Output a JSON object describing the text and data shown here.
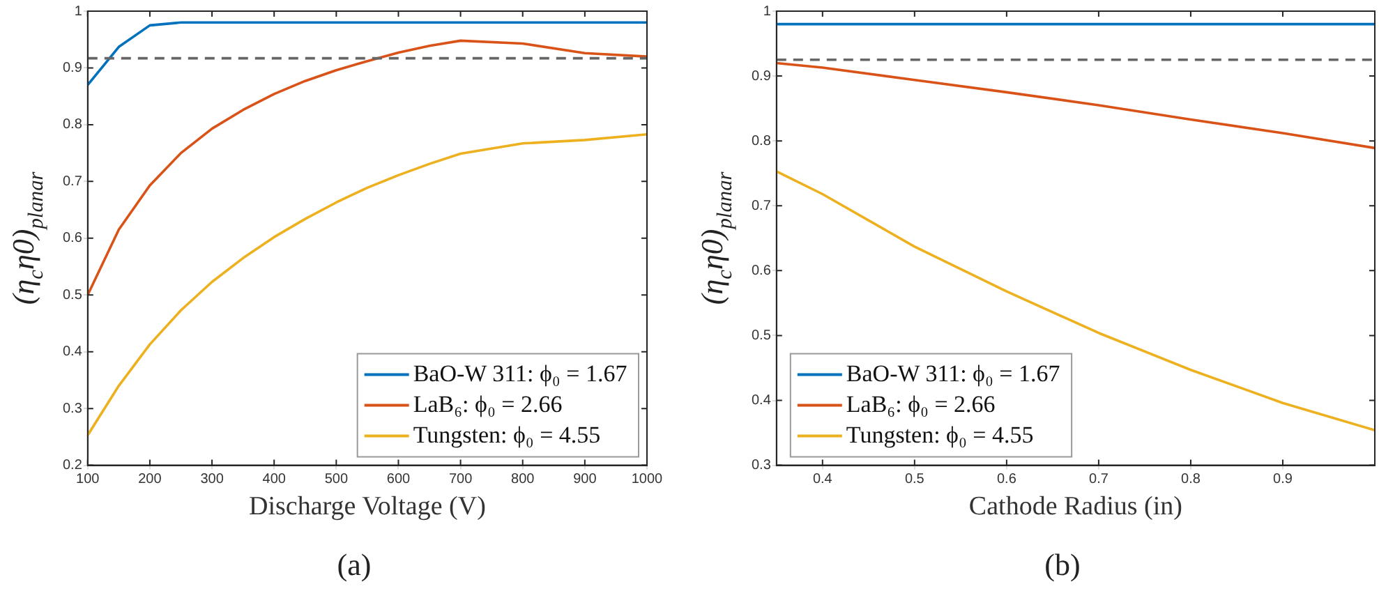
{
  "chart_data": [
    {
      "type": "line",
      "title": "(a)",
      "xlabel": "Discharge Voltage (V)",
      "ylabel": "(η$_{c}$η0)$_{planar}$",
      "xlim": [
        100,
        1000
      ],
      "xticks": [
        100,
        200,
        300,
        400,
        500,
        600,
        700,
        800,
        900,
        1000
      ],
      "ylim": [
        0.2,
        1
      ],
      "yticks": [
        0.2,
        0.3,
        0.4,
        0.5,
        0.6,
        0.7,
        0.8,
        0.9,
        1
      ],
      "grid": false,
      "legend": "bottom right",
      "marker": "none",
      "line_style": "solid",
      "x": [
        100,
        150,
        200,
        250,
        300,
        350,
        400,
        450,
        500,
        550,
        600,
        650,
        700,
        800,
        900,
        1000
      ],
      "series": [
        {
          "name": "BaO-W 311: ϕ₀ = 1.67",
          "color": "#0072bd",
          "values": [
            0.87,
            0.937,
            0.975,
            0.98,
            0.98,
            0.98,
            0.98,
            0.98,
            0.98,
            0.98,
            0.98,
            0.98,
            0.98,
            0.98,
            0.98,
            0.98
          ]
        },
        {
          "name": "LaB₆: ϕ₀ = 2.66",
          "color": "#d95319",
          "values": [
            0.5,
            0.615,
            0.693,
            0.75,
            0.793,
            0.826,
            0.854,
            0.877,
            0.896,
            0.912,
            0.927,
            0.939,
            0.948,
            0.943,
            0.926,
            0.92
          ]
        },
        {
          "name": "Tungsten: ϕ₀ = 4.55",
          "color": "#edb120",
          "values": [
            0.253,
            0.34,
            0.413,
            0.473,
            0.523,
            0.565,
            0.602,
            0.634,
            0.663,
            0.689,
            0.711,
            0.731,
            0.749,
            0.767,
            0.773,
            0.783
          ]
        }
      ],
      "ref_lines": [
        {
          "axis": "y",
          "value": 0.917,
          "color": "#666666",
          "line_style": "dashed"
        }
      ]
    },
    {
      "type": "line",
      "title": "(b)",
      "xlabel": "Cathode Radius (in)",
      "ylabel": "(η$_{c}$η0)$_{planar}$",
      "xlim": [
        0.35,
        1
      ],
      "xticks": [
        0.4,
        0.5,
        0.6,
        0.7,
        0.8,
        0.9
      ],
      "ylim": [
        0.3,
        1
      ],
      "yticks": [
        0.3,
        0.4,
        0.5,
        0.6,
        0.7,
        0.8,
        0.9,
        1
      ],
      "grid": false,
      "legend": "bottom left",
      "marker": "none",
      "line_style": "solid",
      "x": [
        0.35,
        0.4,
        0.5,
        0.6,
        0.7,
        0.8,
        0.9,
        1
      ],
      "series": [
        {
          "name": "BaO-W 311: ϕ₀ = 1.67",
          "color": "#0072bd",
          "values": [
            0.98,
            0.98,
            0.98,
            0.98,
            0.98,
            0.98,
            0.98,
            0.98
          ]
        },
        {
          "name": "LaB₆: ϕ₀ = 2.66",
          "color": "#d95319",
          "values": [
            0.92,
            0.913,
            0.894,
            0.875,
            0.855,
            0.833,
            0.812,
            0.789
          ]
        },
        {
          "name": "Tungsten: ϕ₀ = 4.55",
          "color": "#edb120",
          "values": [
            0.753,
            0.718,
            0.637,
            0.568,
            0.504,
            0.447,
            0.396,
            0.354
          ]
        }
      ],
      "ref_lines": [
        {
          "axis": "y",
          "value": 0.925,
          "color": "#666666",
          "line_style": "dashed"
        }
      ]
    }
  ]
}
